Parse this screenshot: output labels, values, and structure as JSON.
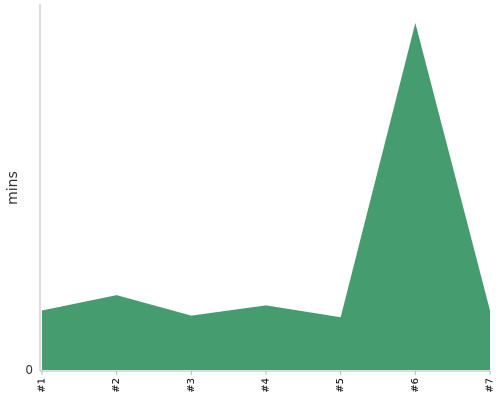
{
  "chart_data": {
    "type": "area",
    "x": [
      "#1",
      "#2",
      "#3",
      "#4",
      "#5",
      "#6",
      "#7"
    ],
    "series": [
      {
        "values": [
          35,
          44,
          32,
          38,
          31,
          204,
          35
        ]
      }
    ],
    "ylabel": "mins",
    "xlabel": "",
    "yticks": [
      "0"
    ],
    "ylim": [
      0,
      214
    ],
    "grid": false,
    "colors": {
      "area": "#459c6e",
      "axis": "#b8b8b8",
      "text": "#333333"
    }
  }
}
